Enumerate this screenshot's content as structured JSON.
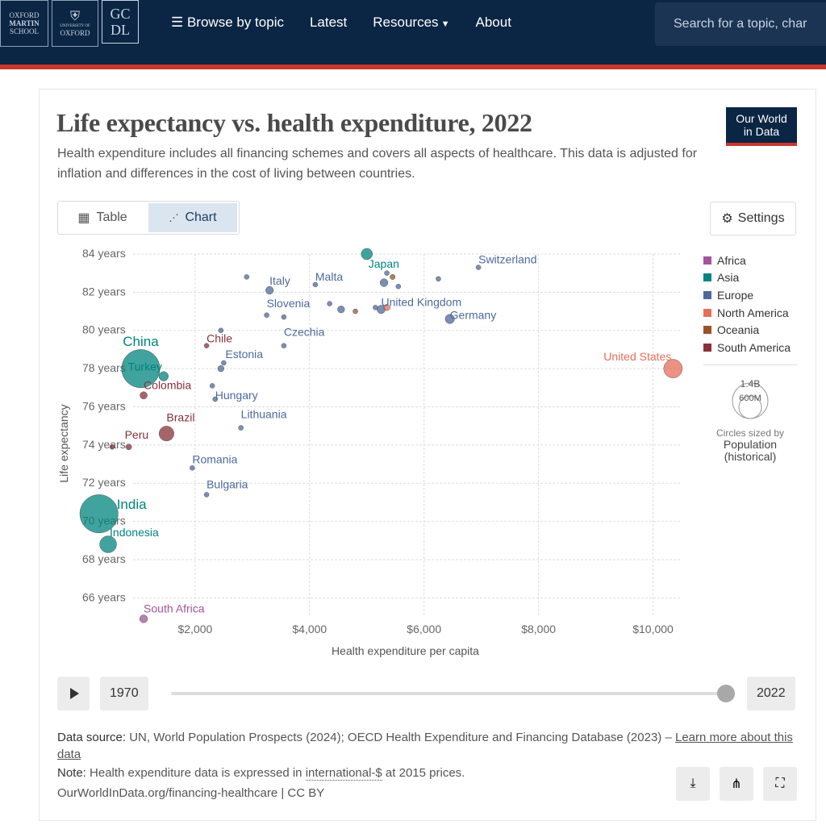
{
  "header": {
    "logos": {
      "oxford_martin": [
        "OXFORD",
        "MARTIN",
        "SCHOOL"
      ],
      "university": [
        "UNIVERSITY OF",
        "OXFORD"
      ],
      "gcdl": [
        "GC",
        "DL"
      ]
    },
    "nav": [
      {
        "label": "Browse by topic",
        "icon": "list-icon"
      },
      {
        "label": "Latest"
      },
      {
        "label": "Resources",
        "icon": "caret-down-icon"
      },
      {
        "label": "About"
      }
    ],
    "search_placeholder": "Search for a topic, char",
    "colors": {
      "navy": "#0b2544",
      "accent": "#c9372c"
    }
  },
  "card": {
    "title": "Life expectancy vs. health expenditure, 2022",
    "subtitle": "Health expenditure includes all financing schemes and covers all aspects of healthcare. This data is adjusted for inflation and differences in the cost of living between countries.",
    "owid_logo": [
      "Our World",
      "in Data"
    ],
    "tabs": [
      {
        "label": "Table",
        "icon": "table-icon",
        "active": false
      },
      {
        "label": "Chart",
        "icon": "scatter-icon",
        "active": true
      }
    ],
    "settings_label": "Settings"
  },
  "legend": {
    "items": [
      {
        "label": "Africa",
        "color": "#a2559c"
      },
      {
        "label": "Asia",
        "color": "#00847e"
      },
      {
        "label": "Europe",
        "color": "#4c6a9c"
      },
      {
        "label": "North America",
        "color": "#e56e5a"
      },
      {
        "label": "Oceania",
        "color": "#9a5129"
      },
      {
        "label": "South America",
        "color": "#883039"
      }
    ],
    "size_key": {
      "big": "1.4B",
      "small": "600M",
      "note": "Circles sized by",
      "measure": [
        "Population",
        "(historical)"
      ]
    }
  },
  "chart_data": {
    "type": "scatter",
    "title": "Life expectancy vs. health expenditure, 2022",
    "xlabel": "Health expenditure per capita",
    "ylabel": "Life expectancy",
    "xlim": [
      0,
      10500
    ],
    "ylim": [
      65,
      84
    ],
    "x_ticks": [
      {
        "value": 2000,
        "label": "$2,000"
      },
      {
        "value": 4000,
        "label": "$4,000"
      },
      {
        "value": 6000,
        "label": "$6,000"
      },
      {
        "value": 8000,
        "label": "$8,000"
      },
      {
        "value": 10000,
        "label": "$10,000"
      }
    ],
    "y_ticks": [
      {
        "value": 84,
        "label": "84 years"
      },
      {
        "value": 82,
        "label": "82 years"
      },
      {
        "value": 80,
        "label": "80 years"
      },
      {
        "value": 78,
        "label": "78 years"
      },
      {
        "value": 76,
        "label": "76 years"
      },
      {
        "value": 74,
        "label": "74 years"
      },
      {
        "value": 72,
        "label": "72 years"
      },
      {
        "value": 70,
        "label": "70 years"
      },
      {
        "value": 68,
        "label": "68 years"
      },
      {
        "value": 66,
        "label": "66 years"
      }
    ],
    "grid": true,
    "legend_position": "right",
    "points": [
      {
        "label": "China",
        "x": 1050,
        "y": 78.0,
        "pop": 1420,
        "region": "Asia",
        "labeled": true
      },
      {
        "label": "India",
        "x": 320,
        "y": 70.4,
        "pop": 1420,
        "region": "Asia",
        "labeled": true
      },
      {
        "label": "Indonesia",
        "x": 480,
        "y": 68.8,
        "pop": 276,
        "region": "Asia",
        "labeled": true
      },
      {
        "label": "Japan",
        "x": 5000,
        "y": 84.0,
        "pop": 124,
        "region": "Asia",
        "labeled": true
      },
      {
        "label": "Turkey",
        "x": 1450,
        "y": 77.6,
        "pop": 86,
        "region": "Asia",
        "labeled": true
      },
      {
        "label": "United States",
        "x": 10350,
        "y": 78.0,
        "pop": 335,
        "region": "North America",
        "labeled": true
      },
      {
        "label": "Switzerland",
        "x": 6950,
        "y": 83.3,
        "pop": 9,
        "region": "Europe",
        "labeled": true
      },
      {
        "label": "Germany",
        "x": 6450,
        "y": 80.6,
        "pop": 84,
        "region": "Europe",
        "labeled": true
      },
      {
        "label": "United Kingdom",
        "x": 5250,
        "y": 81.1,
        "pop": 67,
        "region": "Europe",
        "labeled": true
      },
      {
        "label": "Italy",
        "x": 3300,
        "y": 82.1,
        "pop": 59,
        "region": "Europe",
        "labeled": true
      },
      {
        "label": "Malta",
        "x": 4100,
        "y": 82.4,
        "pop": 0.5,
        "region": "Europe",
        "labeled": true
      },
      {
        "label": "Slovenia",
        "x": 3250,
        "y": 80.8,
        "pop": 2,
        "region": "Europe",
        "labeled": true
      },
      {
        "label": "Czechia",
        "x": 3550,
        "y": 79.2,
        "pop": 10.5,
        "region": "Europe",
        "labeled": true
      },
      {
        "label": "Estonia",
        "x": 2500,
        "y": 78.3,
        "pop": 1.3,
        "region": "Europe",
        "labeled": true
      },
      {
        "label": "Chile",
        "x": 2200,
        "y": 79.2,
        "pop": 19.6,
        "region": "South America",
        "labeled": true
      },
      {
        "label": "Colombia",
        "x": 1100,
        "y": 76.6,
        "pop": 52,
        "region": "South America",
        "labeled": true
      },
      {
        "label": "Hungary",
        "x": 2350,
        "y": 76.4,
        "pop": 9.6,
        "region": "Europe",
        "labeled": true
      },
      {
        "label": "Brazil",
        "x": 1500,
        "y": 74.6,
        "pop": 216,
        "region": "South America",
        "labeled": true
      },
      {
        "label": "Lithuania",
        "x": 2800,
        "y": 74.9,
        "pop": 2.8,
        "region": "Europe",
        "labeled": true
      },
      {
        "label": "Peru",
        "x": 840,
        "y": 73.9,
        "pop": 34,
        "region": "South America",
        "labeled": true
      },
      {
        "label": "Romania",
        "x": 1950,
        "y": 72.8,
        "pop": 19,
        "region": "Europe",
        "labeled": true
      },
      {
        "label": "Bulgaria",
        "x": 2200,
        "y": 71.4,
        "pop": 6.5,
        "region": "Europe",
        "labeled": true
      },
      {
        "label": "South Africa",
        "x": 1100,
        "y": 64.9,
        "pop": 60,
        "region": "Africa",
        "labeled": true
      },
      {
        "label": "",
        "x": 550,
        "y": 73.9,
        "pop": 5,
        "region": "South America",
        "labeled": false
      },
      {
        "label": "",
        "x": 2450,
        "y": 78.0,
        "pop": 38,
        "region": "Europe",
        "labeled": false
      },
      {
        "label": "",
        "x": 2300,
        "y": 77.1,
        "pop": 5,
        "region": "Europe",
        "labeled": false
      },
      {
        "label": "",
        "x": 2450,
        "y": 80.0,
        "pop": 5,
        "region": "Europe",
        "labeled": false
      },
      {
        "label": "",
        "x": 2900,
        "y": 82.8,
        "pop": 4,
        "region": "Europe",
        "labeled": false
      },
      {
        "label": "",
        "x": 3550,
        "y": 80.7,
        "pop": 4,
        "region": "Europe",
        "labeled": false
      },
      {
        "label": "",
        "x": 4350,
        "y": 81.4,
        "pop": 5,
        "region": "Europe",
        "labeled": false
      },
      {
        "label": "",
        "x": 4550,
        "y": 81.1,
        "pop": 48,
        "region": "Europe",
        "labeled": false
      },
      {
        "label": "",
        "x": 4800,
        "y": 81.0,
        "pop": 10,
        "region": "Oceania",
        "labeled": false
      },
      {
        "label": "",
        "x": 5300,
        "y": 82.5,
        "pop": 60,
        "region": "Europe",
        "labeled": false
      },
      {
        "label": "",
        "x": 5350,
        "y": 83.0,
        "pop": 8,
        "region": "Europe",
        "labeled": false
      },
      {
        "label": "",
        "x": 5550,
        "y": 82.3,
        "pop": 8,
        "region": "Europe",
        "labeled": false
      },
      {
        "label": "",
        "x": 6250,
        "y": 82.7,
        "pop": 5,
        "region": "Europe",
        "labeled": false
      },
      {
        "label": "",
        "x": 5450,
        "y": 82.8,
        "pop": 26,
        "region": "Oceania",
        "labeled": false
      },
      {
        "label": "",
        "x": 5350,
        "y": 81.2,
        "pop": 38,
        "region": "North America",
        "labeled": false
      },
      {
        "label": "",
        "x": 5150,
        "y": 81.2,
        "pop": 5,
        "region": "Europe",
        "labeled": false
      }
    ]
  },
  "timeline": {
    "start": "1970",
    "end": "2022",
    "progress": 1.0
  },
  "footer": {
    "source_label": "Data source:",
    "source_text": "UN, World Population Prospects (2024); OECD Health Expenditure and Financing Database (2023) – ",
    "source_link": "Learn more about this data",
    "note_label": "Note:",
    "note_text_1": "Health expenditure data is expressed in ",
    "note_link": "international-$",
    "note_text_2": " at 2015 prices.",
    "url": "OurWorldInData.org/financing-healthcare | CC BY",
    "actions": [
      {
        "name": "download-button",
        "icon": "download-icon"
      },
      {
        "name": "share-button",
        "icon": "share-icon"
      },
      {
        "name": "fullscreen-button",
        "icon": "fullscreen-icon"
      }
    ]
  }
}
